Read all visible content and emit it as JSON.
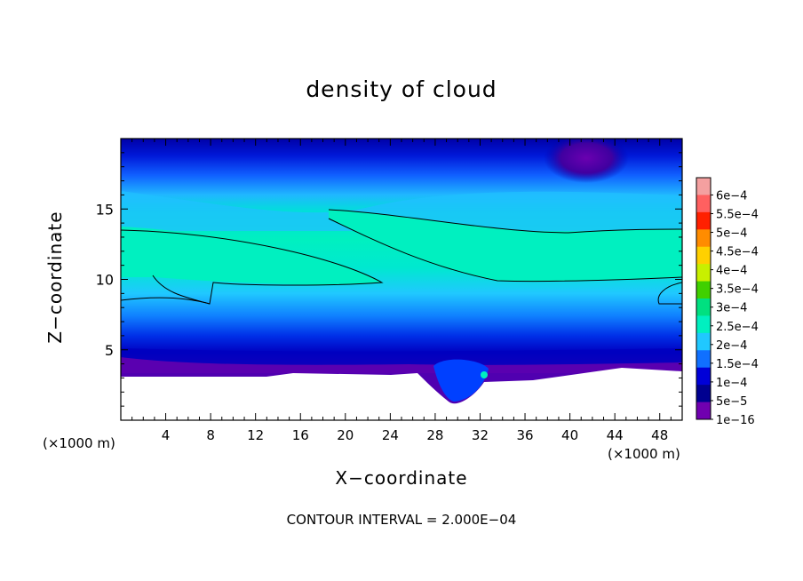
{
  "chart_data": {
    "type": "heatmap",
    "title": "density of cloud",
    "xlabel": "X−coordinate",
    "ylabel": "Z−coordinate",
    "x_units": "(×1000 m)",
    "z_units": "(×1000 m)",
    "xlim": [
      0,
      50
    ],
    "ylim": [
      0,
      20
    ],
    "x_ticks": [
      4,
      8,
      12,
      16,
      20,
      24,
      28,
      32,
      36,
      40,
      44,
      48
    ],
    "y_ticks": [
      5,
      10,
      15
    ],
    "colorbar": {
      "labels": [
        "6e−4",
        "5.5e−4",
        "5e−4",
        "4.5e−4",
        "4e−4",
        "3.5e−4",
        "3e−4",
        "2.5e−4",
        "2e−4",
        "1.5e−4",
        "1e−4",
        "5e−5",
        "1e−16"
      ],
      "colors": [
        "#f4a0a0",
        "#ff6060",
        "#ff2000",
        "#ff8c00",
        "#ffd000",
        "#c8f000",
        "#40d000",
        "#00e080",
        "#00f0c0",
        "#20c8ff",
        "#1070ff",
        "#0000d8",
        "#000090",
        "#7000b0"
      ]
    },
    "contour_interval": "CONTOUR INTERVAL = 2.000E−04"
  }
}
